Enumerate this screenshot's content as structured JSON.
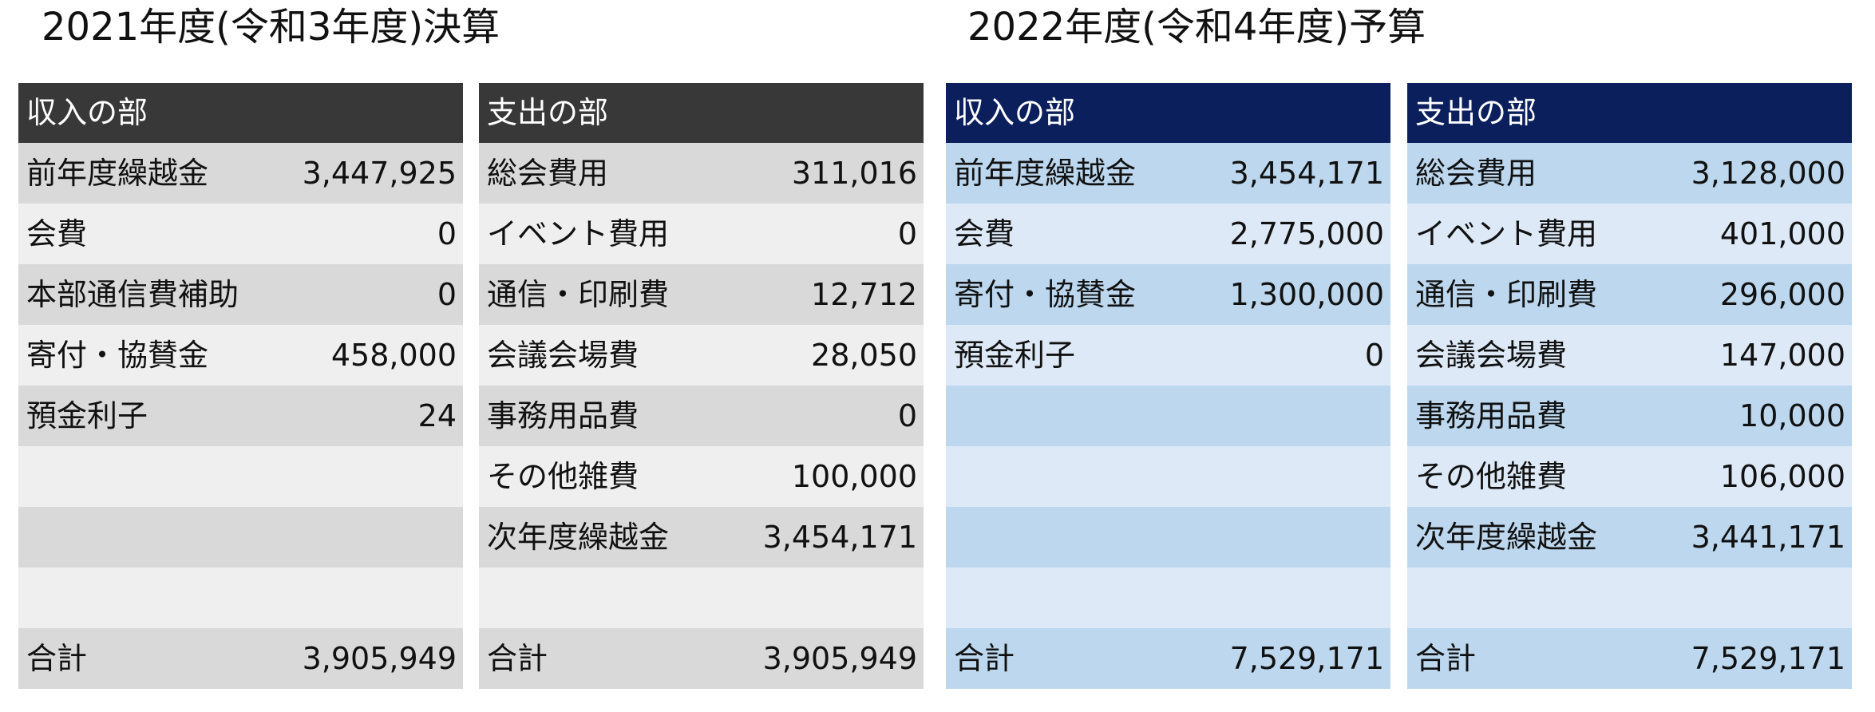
{
  "sections": [
    {
      "title": "2021年度(令和3年度)決算",
      "income": {
        "header": "収入の部",
        "rows": [
          {
            "label": "前年度繰越金",
            "value": "3,447,925"
          },
          {
            "label": "会費",
            "value": "0"
          },
          {
            "label": "本部通信費補助",
            "value": "0"
          },
          {
            "label": "寄付・協賛金",
            "value": "458,000"
          },
          {
            "label": "預金利子",
            "value": "24"
          },
          {
            "label": "",
            "value": ""
          },
          {
            "label": "",
            "value": ""
          },
          {
            "label": "",
            "value": ""
          }
        ],
        "total": {
          "label": "合計",
          "value": "3,905,949"
        }
      },
      "expense": {
        "header": "支出の部",
        "rows": [
          {
            "label": "総会費用",
            "value": "311,016"
          },
          {
            "label": "イベント費用",
            "value": "0"
          },
          {
            "label": "通信・印刷費",
            "value": "12,712"
          },
          {
            "label": "会議会場費",
            "value": "28,050"
          },
          {
            "label": "事務用品費",
            "value": "0"
          },
          {
            "label": "その他雑費",
            "value": "100,000"
          },
          {
            "label": "次年度繰越金",
            "value": "3,454,171"
          },
          {
            "label": "",
            "value": ""
          }
        ],
        "total": {
          "label": "合計",
          "value": "3,905,949"
        }
      }
    },
    {
      "title": "2022年度(令和4年度)予算",
      "income": {
        "header": "収入の部",
        "rows": [
          {
            "label": "前年度繰越金",
            "value": "3,454,171"
          },
          {
            "label": "会費",
            "value": "2,775,000"
          },
          {
            "label": "寄付・協賛金",
            "value": "1,300,000"
          },
          {
            "label": "預金利子",
            "value": "0"
          },
          {
            "label": "",
            "value": ""
          },
          {
            "label": "",
            "value": ""
          },
          {
            "label": "",
            "value": ""
          },
          {
            "label": "",
            "value": ""
          }
        ],
        "total": {
          "label": "合計",
          "value": "7,529,171"
        }
      },
      "expense": {
        "header": "支出の部",
        "rows": [
          {
            "label": "総会費用",
            "value": "3,128,000"
          },
          {
            "label": "イベント費用",
            "value": "401,000"
          },
          {
            "label": "通信・印刷費",
            "value": "296,000"
          },
          {
            "label": "会議会場費",
            "value": "147,000"
          },
          {
            "label": "事務用品費",
            "value": "10,000"
          },
          {
            "label": "その他雑費",
            "value": "106,000"
          },
          {
            "label": "次年度繰越金",
            "value": "3,441,171"
          },
          {
            "label": "",
            "value": ""
          }
        ],
        "total": {
          "label": "合計",
          "value": "7,529,171"
        }
      }
    }
  ],
  "colors": {
    "settlement_header": "#383838",
    "settlement_row_dark": "#d9d9d9",
    "settlement_row_light": "#efefef",
    "budget_header": "#0a1f5c",
    "budget_row_dark": "#bcd7ee",
    "budget_row_light": "#dde9f6"
  }
}
